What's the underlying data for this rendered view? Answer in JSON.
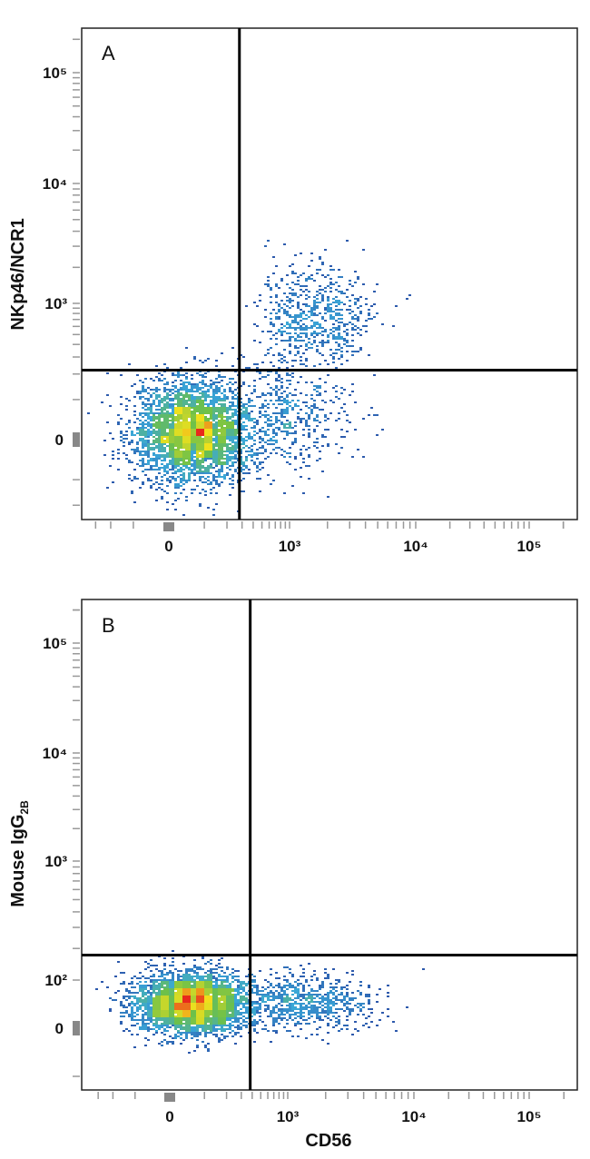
{
  "chart_data": [
    {
      "type": "scatter",
      "subtype": "flow-cytometry-density-dot-plot",
      "panel_label": "A",
      "xlabel": "",
      "ylabel": "NKp46/NCR1",
      "x_scale": "biexponential",
      "y_scale": "biexponential",
      "x_ticks": [
        0,
        1000,
        10000,
        100000
      ],
      "x_tick_labels": [
        "0",
        "10³",
        "10⁴",
        "10⁵"
      ],
      "y_ticks": [
        0,
        1000,
        10000,
        100000
      ],
      "y_tick_labels": [
        "0",
        "10³",
        "10⁴",
        "10⁵"
      ],
      "quadrant_gate": {
        "x": 280,
        "y": 220
      },
      "populations": [
        {
          "center": {
            "x": 60,
            "y": 20
          },
          "events": 3600,
          "spread": {
            "x": 0.75,
            "y": 0.55
          }
        },
        {
          "center": {
            "x": 1500,
            "y": 700
          },
          "events": 650,
          "spread": {
            "x": 0.55,
            "y": 0.55
          }
        },
        {
          "center": {
            "x": 900,
            "y": 60
          },
          "events": 450,
          "spread": {
            "x": 0.6,
            "y": 0.6
          }
        }
      ],
      "density_colors": [
        "#2b4ea6",
        "#3aa7d8",
        "#6cc04a",
        "#f2e21c",
        "#e8281c"
      ],
      "grid": false
    },
    {
      "type": "scatter",
      "subtype": "flow-cytometry-density-dot-plot",
      "panel_label": "B",
      "xlabel": "CD56",
      "ylabel": "Mouse IgG",
      "ylabel_sub": "2B",
      "x_scale": "biexponential",
      "y_scale": "biexponential",
      "x_ticks": [
        0,
        1000,
        10000,
        100000
      ],
      "x_tick_labels": [
        "0",
        "10³",
        "10⁴",
        "10⁵"
      ],
      "y_ticks": [
        0,
        100,
        1000,
        10000,
        100000
      ],
      "y_tick_labels": [
        "0",
        "10²",
        "10³",
        "10⁴",
        "10⁵"
      ],
      "quadrant_gate": {
        "x": 380,
        "y": 175
      },
      "populations": [
        {
          "center": {
            "x": 60,
            "y": 50
          },
          "events": 3600,
          "spread": {
            "x": 0.75,
            "y": 0.28
          }
        },
        {
          "center": {
            "x": 1400,
            "y": 50
          },
          "events": 650,
          "spread": {
            "x": 0.6,
            "y": 0.25
          }
        }
      ],
      "density_colors": [
        "#2b4ea6",
        "#3aa7d8",
        "#6cc04a",
        "#f2e21c",
        "#e8281c"
      ],
      "grid": false
    }
  ]
}
